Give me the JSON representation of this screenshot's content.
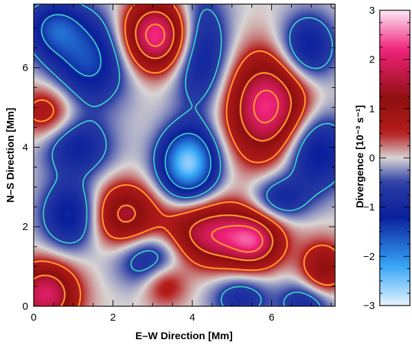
{
  "chart_data": {
    "type": "heatmap",
    "xlabel": "E–W Direction   [Mm]",
    "ylabel": "N–S Direction   [Mm]",
    "colorbar_label": "Divergence   [10⁻³ s⁻¹]",
    "xlim": [
      0,
      7.6
    ],
    "ylim": [
      0,
      7.6
    ],
    "x_ticks": [
      0,
      2,
      4,
      6
    ],
    "y_ticks": [
      0,
      2,
      4,
      6
    ],
    "colorbar_range": [
      -3,
      3
    ],
    "colorbar_ticks": [
      -3,
      -2,
      -1,
      0,
      1,
      2,
      3
    ],
    "colormap_stops": [
      {
        "value": -3,
        "color": "#e8f4ff"
      },
      {
        "value": -2.2,
        "color": "#35a6f6"
      },
      {
        "value": -1.2,
        "color": "#0a1f9c"
      },
      {
        "value": -0.5,
        "color": "#2a3da4"
      },
      {
        "value": 0,
        "color": "#d9d4d4"
      },
      {
        "value": 0.5,
        "color": "#b51c1c"
      },
      {
        "value": 1.2,
        "color": "#8f0f0f"
      },
      {
        "value": 2.2,
        "color": "#f0217a"
      },
      {
        "value": 3,
        "color": "#fde9f6"
      }
    ],
    "blobs": [
      {
        "x": 3.1,
        "y": 6.8,
        "amp": 2.4,
        "sx": 0.6,
        "sy": 0.6
      },
      {
        "x": 5.9,
        "y": 5.0,
        "amp": 2.3,
        "sx": 0.7,
        "sy": 0.9
      },
      {
        "x": 4.6,
        "y": 1.8,
        "amp": 2.0,
        "sx": 0.9,
        "sy": 0.55
      },
      {
        "x": 5.6,
        "y": 1.6,
        "amp": 1.3,
        "sx": 0.45,
        "sy": 0.45
      },
      {
        "x": 2.3,
        "y": 2.3,
        "amp": 1.5,
        "sx": 0.55,
        "sy": 0.55
      },
      {
        "x": 0.3,
        "y": 0.3,
        "amp": 2.0,
        "sx": 0.55,
        "sy": 0.55
      },
      {
        "x": 0.35,
        "y": 4.9,
        "amp": 0.9,
        "sx": 0.5,
        "sy": 0.5
      },
      {
        "x": 7.3,
        "y": 0.9,
        "amp": 1.2,
        "sx": 0.4,
        "sy": 0.5
      },
      {
        "x": 3.3,
        "y": 0.6,
        "amp": 0.9,
        "sx": 0.4,
        "sy": 0.4
      },
      {
        "x": 3.9,
        "y": 3.6,
        "amp": -2.6,
        "sx": 0.5,
        "sy": 0.6
      },
      {
        "x": 1.4,
        "y": 6.2,
        "amp": -1.5,
        "sx": 0.7,
        "sy": 0.8
      },
      {
        "x": 0.5,
        "y": 7.0,
        "amp": -1.3,
        "sx": 0.5,
        "sy": 0.5
      },
      {
        "x": 4.2,
        "y": 6.4,
        "amp": -1.3,
        "sx": 0.5,
        "sy": 1.0
      },
      {
        "x": 6.9,
        "y": 6.5,
        "amp": -1.3,
        "sx": 0.5,
        "sy": 0.6
      },
      {
        "x": 1.1,
        "y": 4.0,
        "amp": -1.1,
        "sx": 0.6,
        "sy": 0.5
      },
      {
        "x": 0.9,
        "y": 2.3,
        "amp": -1.3,
        "sx": 0.5,
        "sy": 0.6
      },
      {
        "x": 3.0,
        "y": 1.2,
        "amp": -1.2,
        "sx": 0.6,
        "sy": 0.5
      },
      {
        "x": 7.1,
        "y": 3.9,
        "amp": -1.4,
        "sx": 0.6,
        "sy": 0.7
      },
      {
        "x": 6.2,
        "y": 2.7,
        "amp": -1.0,
        "sx": 0.5,
        "sy": 0.4
      },
      {
        "x": 5.2,
        "y": 0.2,
        "amp": -0.9,
        "sx": 0.5,
        "sy": 0.4
      },
      {
        "x": 6.9,
        "y": 0.1,
        "amp": -1.0,
        "sx": 0.5,
        "sy": 0.4
      }
    ]
  }
}
